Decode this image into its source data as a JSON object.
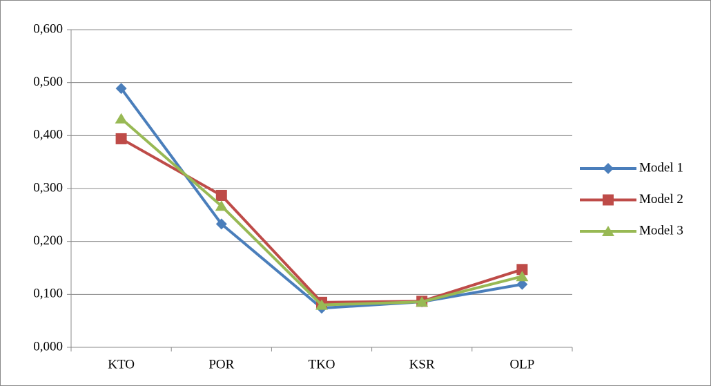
{
  "chart_data": {
    "type": "line",
    "categories": [
      "KTO",
      "POR",
      "TKO",
      "KSR",
      "OLP"
    ],
    "series": [
      {
        "name": "Model 1",
        "color": "#4a7ebb",
        "marker": "diamond",
        "values": [
          0.489,
          0.233,
          0.074,
          0.086,
          0.119
        ]
      },
      {
        "name": "Model 2",
        "color": "#be4b48",
        "marker": "square",
        "values": [
          0.394,
          0.287,
          0.085,
          0.087,
          0.147
        ]
      },
      {
        "name": "Model 3",
        "color": "#98b954",
        "marker": "triangle",
        "values": [
          0.432,
          0.267,
          0.08,
          0.086,
          0.134
        ]
      }
    ],
    "ylim": [
      0,
      0.6
    ],
    "yticks": [
      {
        "value": 0,
        "label": "0,000"
      },
      {
        "value": 0.1,
        "label": "0,100"
      },
      {
        "value": 0.2,
        "label": "0,200"
      },
      {
        "value": 0.3,
        "label": "0,300"
      },
      {
        "value": 0.4,
        "label": "0,400"
      },
      {
        "value": 0.5,
        "label": "0,500"
      },
      {
        "value": 0.6,
        "label": "0,600"
      }
    ],
    "grid": true,
    "legend": "right"
  }
}
